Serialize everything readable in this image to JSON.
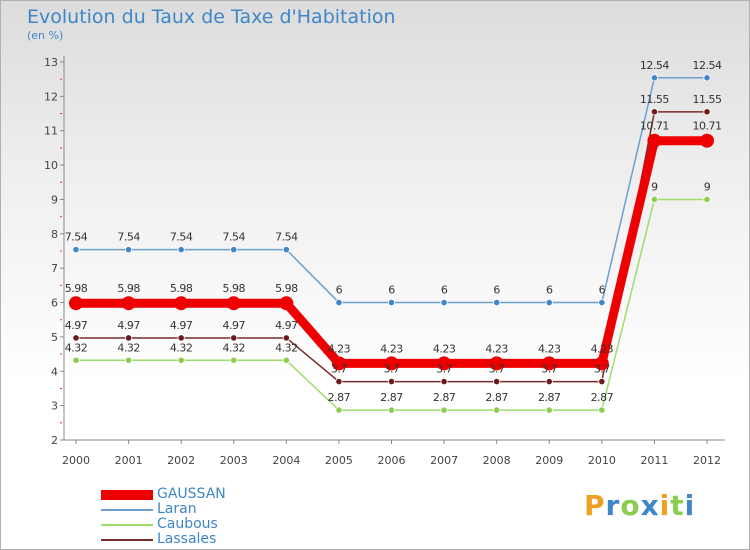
{
  "title": "Evolution du Taux de Taxe d'Habitation",
  "unit_label": "(en %)",
  "chart_data": {
    "type": "line",
    "title": "Evolution du Taux de Taxe d'Habitation",
    "ylabel": "(en %)",
    "xlabel": "",
    "x": [
      "2000",
      "2001",
      "2002",
      "2003",
      "2004",
      "2005",
      "2006",
      "2007",
      "2008",
      "2009",
      "2010",
      "2011",
      "2012"
    ],
    "ylim": [
      2,
      13
    ],
    "yticks": [
      2,
      3,
      4,
      5,
      6,
      7,
      8,
      9,
      10,
      11,
      12,
      13
    ],
    "grid": false,
    "legend": "bottom-left",
    "series": [
      {
        "name": "Laran",
        "color": "#6a9fd0",
        "marker": "#3f86c8",
        "values": [
          7.54,
          7.54,
          7.54,
          7.54,
          7.54,
          6,
          6,
          6,
          6,
          6,
          6,
          12.54,
          12.54
        ],
        "labels": [
          "7.54",
          "7.54",
          "7.54",
          "7.54",
          "7.54",
          "6",
          "6",
          "6",
          "6",
          "6",
          "6",
          "12.54",
          "12.54"
        ]
      },
      {
        "name": "Lassales",
        "color": "#7a2a2a",
        "marker": "#6b1a1a",
        "values": [
          4.97,
          4.97,
          4.97,
          4.97,
          4.97,
          3.7,
          3.7,
          3.7,
          3.7,
          3.7,
          3.7,
          11.55,
          11.55
        ],
        "labels": [
          "4.97",
          "4.97",
          "4.97",
          "4.97",
          "4.97",
          "3.7",
          "3.7",
          "3.7",
          "3.7",
          "3.7",
          "3.7",
          "11.55",
          "11.55"
        ]
      },
      {
        "name": "Caubous",
        "color": "#9fdc6a",
        "marker": "#8acd50",
        "values": [
          4.32,
          4.32,
          4.32,
          4.32,
          4.32,
          2.87,
          2.87,
          2.87,
          2.87,
          2.87,
          2.87,
          9,
          9
        ],
        "labels": [
          "4.32",
          "4.32",
          "4.32",
          "4.32",
          "4.32",
          "2.87",
          "2.87",
          "2.87",
          "2.87",
          "2.87",
          "2.87",
          "9",
          "9"
        ]
      },
      {
        "name": "GAUSSAN",
        "color": "#ee0000",
        "marker": "#ee0000",
        "values": [
          5.98,
          5.98,
          5.98,
          5.98,
          5.98,
          4.23,
          4.23,
          4.23,
          4.23,
          4.23,
          4.23,
          10.71,
          10.71
        ],
        "labels": [
          "5.98",
          "5.98",
          "5.98",
          "5.98",
          "5.98",
          "4.23",
          "4.23",
          "4.23",
          "4.23",
          "4.23",
          "4.23",
          "10.71",
          "10.71"
        ]
      }
    ]
  },
  "legend": [
    {
      "name": "GAUSSAN",
      "color": "#ee0000"
    },
    {
      "name": "Laran",
      "color": "#6a9fd0"
    },
    {
      "name": "Caubous",
      "color": "#9fdc6a"
    },
    {
      "name": "Lassales",
      "color": "#7a2a2a"
    }
  ],
  "logo": {
    "text": "Proxiti",
    "letters": [
      "P",
      "r",
      "o",
      "x",
      "i",
      "t",
      "i"
    ],
    "colors": [
      "#f0a020",
      "#3f86c8",
      "#8acd50",
      "#3f86c8",
      "#f0a020",
      "#8acd50",
      "#3f86c8"
    ]
  }
}
